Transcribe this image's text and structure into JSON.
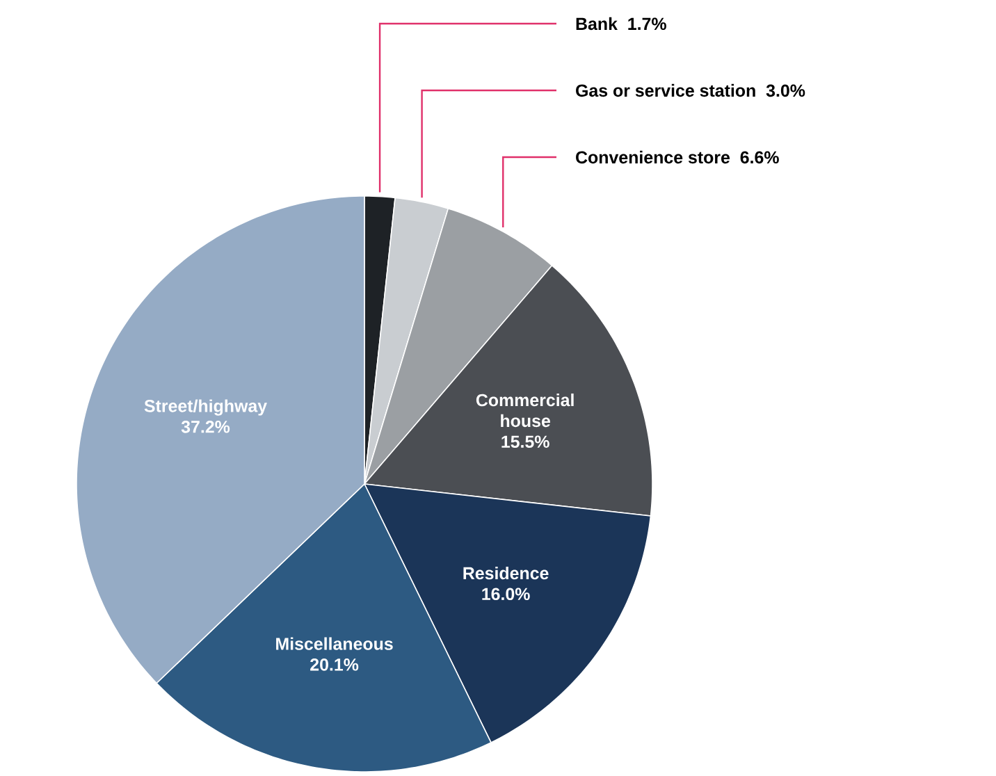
{
  "chart_data": {
    "type": "pie",
    "categories": [
      "Bank",
      "Gas or service station",
      "Convenience store",
      "Commercial house",
      "Residence",
      "Miscellaneous",
      "Street/highway"
    ],
    "values": [
      1.7,
      3.0,
      6.6,
      15.5,
      16.0,
      20.1,
      37.2
    ],
    "value_labels": [
      "1.7%",
      "3.0%",
      "6.6%",
      "15.5%",
      "16.0%",
      "20.1%",
      "37.2%"
    ],
    "colors": [
      "#1e2226",
      "#c9cdd1",
      "#9b9fa3",
      "#4b4e53",
      "#1b3558",
      "#2d5a82",
      "#95abc5"
    ]
  }
}
